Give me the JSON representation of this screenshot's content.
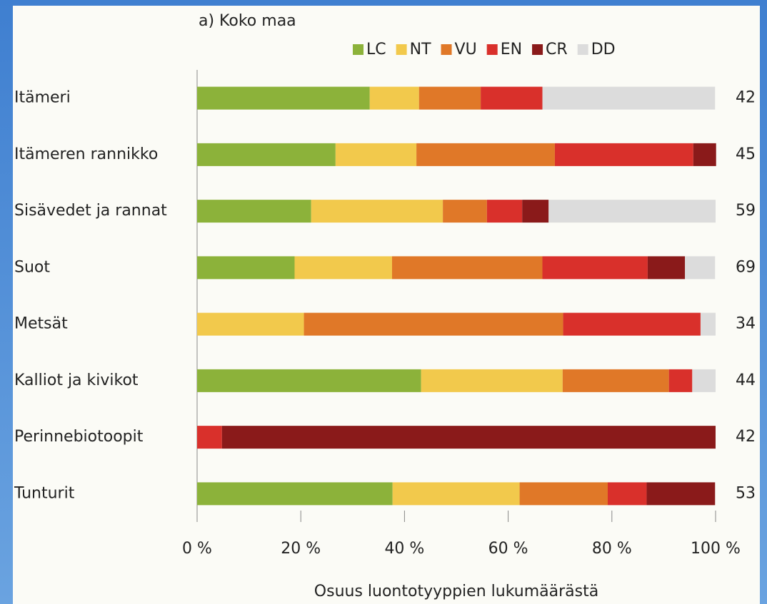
{
  "chart_data": {
    "type": "stacked-bar-horizontal",
    "title": "a) Koko maa",
    "x_label": "Osuus luontotyyppien lukumäärästä",
    "categories": [
      "Itämeri",
      "Itämeren rannikko",
      "Sisävedet ja rannat",
      "Suot",
      "Metsät",
      "Kalliot ja kivikot",
      "Perinnebiotoopit",
      "Tunturit"
    ],
    "counts": [
      42,
      45,
      59,
      69,
      34,
      44,
      42,
      53
    ],
    "series": [
      {
        "name": "LC",
        "color": "#8cb23a",
        "values": [
          33.3,
          26.7,
          22.0,
          18.8,
          0,
          43.2,
          0,
          37.7
        ]
      },
      {
        "name": "NT",
        "color": "#f2c94c",
        "values": [
          9.5,
          15.6,
          25.4,
          18.8,
          20.6,
          27.3,
          0,
          24.5
        ]
      },
      {
        "name": "VU",
        "color": "#e07828",
        "values": [
          11.9,
          26.7,
          8.5,
          29.0,
          50.0,
          20.5,
          0,
          17.0
        ]
      },
      {
        "name": "EN",
        "color": "#d9302b",
        "values": [
          11.9,
          26.7,
          6.8,
          20.3,
          26.5,
          4.5,
          4.8,
          7.5
        ]
      },
      {
        "name": "CR",
        "color": "#8a1a1a",
        "values": [
          0,
          4.4,
          5.1,
          7.2,
          0,
          0,
          95.2,
          13.2
        ]
      },
      {
        "name": "DD",
        "color": "#dcdcdc",
        "values": [
          33.3,
          0,
          32.2,
          5.8,
          2.9,
          4.5,
          0,
          0
        ]
      }
    ],
    "xlim": [
      0,
      100
    ],
    "xticks": [
      {
        "value": 0,
        "label": "0 %"
      },
      {
        "value": 20,
        "label": "20 %"
      },
      {
        "value": 40,
        "label": "40 %"
      },
      {
        "value": 60,
        "label": "60 %"
      },
      {
        "value": 80,
        "label": "80 %"
      },
      {
        "value": 100,
        "label": "100 %"
      }
    ]
  }
}
